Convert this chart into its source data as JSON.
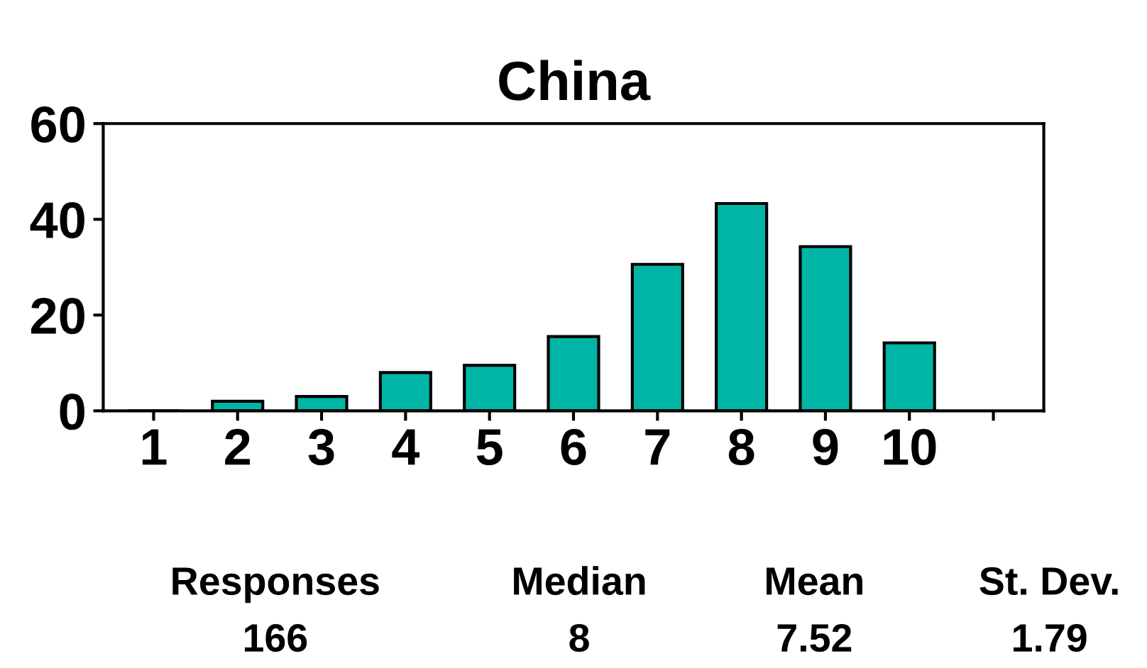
{
  "chart_data": {
    "type": "bar",
    "title": "China",
    "categories": [
      "1",
      "2",
      "3",
      "4",
      "5",
      "6",
      "7",
      "8",
      "9",
      "10",
      null
    ],
    "values": [
      0,
      2,
      3,
      8,
      9.5,
      15.5,
      30.6,
      43.3,
      34.3,
      14.2,
      null
    ],
    "color": "#00b5a5",
    "ylim": [
      0,
      60
    ],
    "yticks": [
      0,
      20,
      40,
      60
    ],
    "grid": false,
    "legend": false,
    "annotations": [
      "Responses",
      "Median",
      "Mean",
      "St. Dev.",
      "166",
      "8",
      "7.52",
      "1.79"
    ]
  }
}
